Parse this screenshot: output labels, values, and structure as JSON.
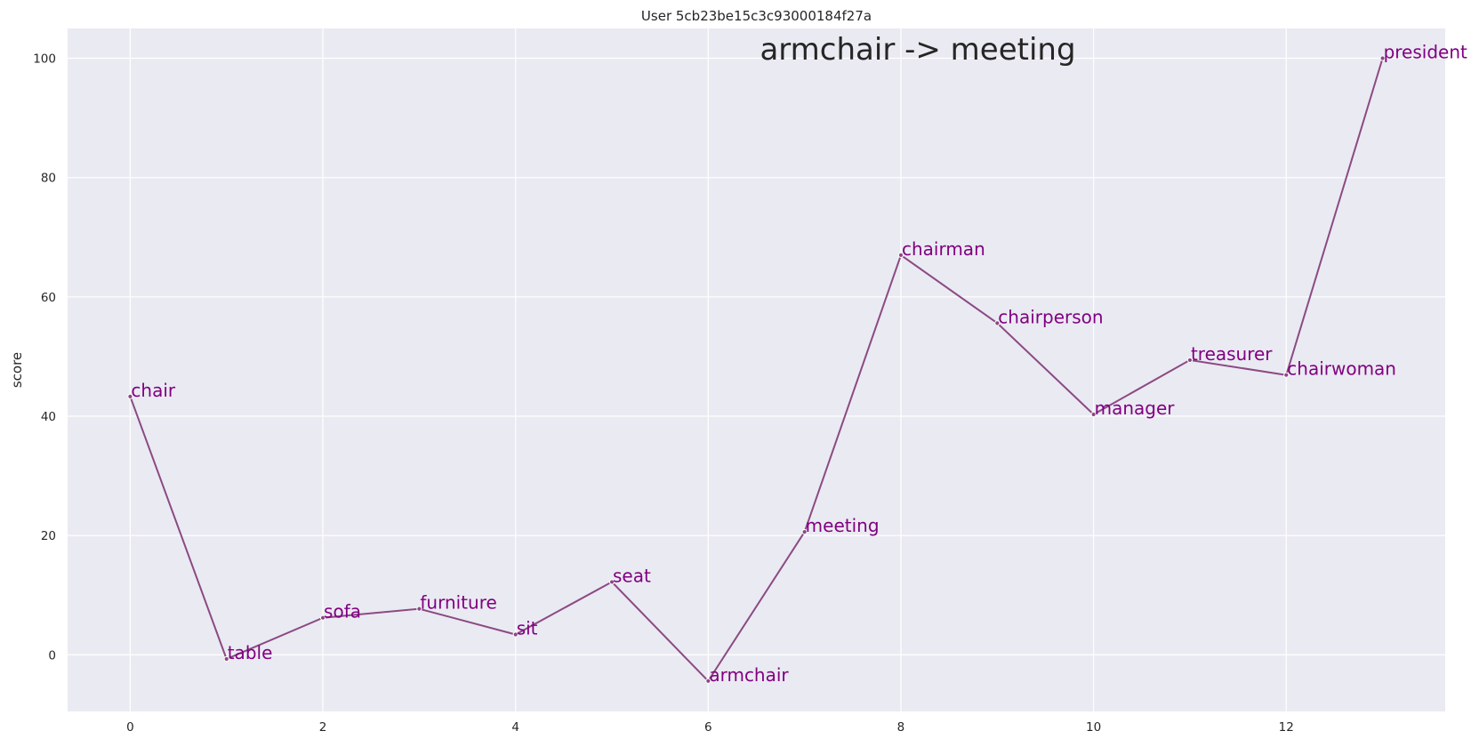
{
  "chart_data": {
    "type": "line",
    "title": "User 5cb23be15c3c93000184f27a",
    "annotation": "armchair -> meeting",
    "xlabel": "",
    "ylabel": "score",
    "xlim": [
      -0.65,
      13.65
    ],
    "ylim": [
      -9.5,
      105
    ],
    "xticks": [
      0,
      2,
      4,
      6,
      8,
      10,
      12
    ],
    "yticks": [
      0,
      20,
      40,
      60,
      80,
      100
    ],
    "grid": true,
    "colors": {
      "line": "#8b4a83",
      "labels": "#800080",
      "plot_bg": "#eaeaf2",
      "grid": "#ffffff"
    },
    "points": [
      {
        "x": 0,
        "y": 43.3,
        "label": "chair"
      },
      {
        "x": 1,
        "y": -0.7,
        "label": "table"
      },
      {
        "x": 2,
        "y": 6.2,
        "label": "sofa"
      },
      {
        "x": 3,
        "y": 7.7,
        "label": "furniture"
      },
      {
        "x": 4,
        "y": 3.4,
        "label": "sit"
      },
      {
        "x": 5,
        "y": 12.2,
        "label": "seat"
      },
      {
        "x": 6,
        "y": -4.4,
        "label": "armchair"
      },
      {
        "x": 7,
        "y": 20.6,
        "label": "meeting"
      },
      {
        "x": 8,
        "y": 67.0,
        "label": "chairman"
      },
      {
        "x": 9,
        "y": 55.6,
        "label": "chairperson"
      },
      {
        "x": 10,
        "y": 40.3,
        "label": "manager"
      },
      {
        "x": 11,
        "y": 49.4,
        "label": "treasurer"
      },
      {
        "x": 12,
        "y": 46.9,
        "label": "chairwoman"
      },
      {
        "x": 13,
        "y": 100.0,
        "label": "president"
      }
    ]
  }
}
